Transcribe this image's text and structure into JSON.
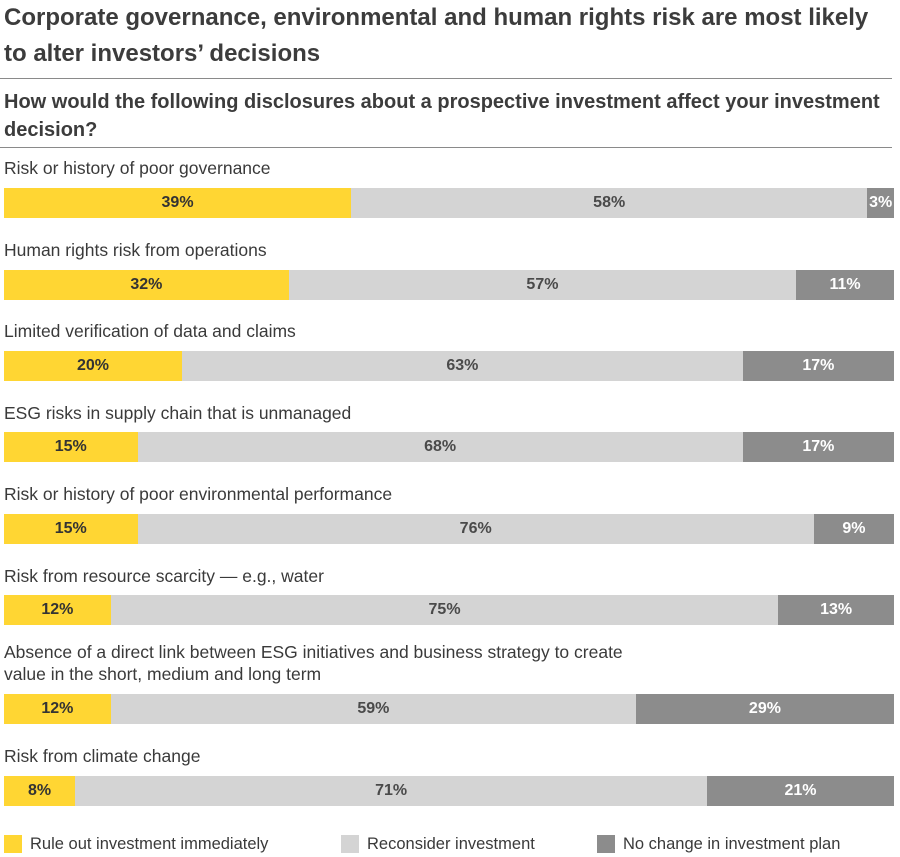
{
  "chart_data": {
    "type": "bar",
    "orientation": "horizontal",
    "stacked": true,
    "title": "Corporate governance, environmental and human rights risk are most likely to alter investors’ decisions",
    "subtitle": "How would the following disclosures about a prospective investment affect your investment decision?",
    "categories": [
      "Risk or history of poor governance",
      "Human rights risk from operations",
      "Limited verification of data and claims",
      "ESG risks in supply chain that is unmanaged",
      "Risk or history of poor environmental performance",
      "Risk from resource scarcity — e.g., water",
      "Absence of a direct link between ESG initiatives and business strategy to create value in the short, medium and long term",
      "Risk from climate change"
    ],
    "category_lines": [
      [
        "Risk or history of poor governance"
      ],
      [
        "Human rights risk from operations"
      ],
      [
        "Limited verification of data and claims"
      ],
      [
        "ESG risks in supply chain that is unmanaged"
      ],
      [
        "Risk or history of poor environmental performance"
      ],
      [
        "Risk from resource scarcity — e.g., water"
      ],
      [
        "Absence of a direct link between ESG initiatives and business strategy to create",
        "value in the short, medium and long term"
      ],
      [
        "Risk from climate change"
      ]
    ],
    "series": [
      {
        "name": "Rule out investment immediately",
        "color": "#ffd633",
        "values": [
          39,
          32,
          20,
          15,
          15,
          12,
          12,
          8
        ]
      },
      {
        "name": "Reconsider investment",
        "color": "#d4d4d4",
        "values": [
          58,
          57,
          63,
          68,
          76,
          75,
          59,
          71
        ]
      },
      {
        "name": "No change in investment plan",
        "color": "#8c8c8c",
        "values": [
          3,
          11,
          17,
          17,
          9,
          13,
          29,
          21
        ]
      }
    ],
    "value_suffix": "%",
    "xlim": [
      0,
      100
    ],
    "legend_position": "bottom",
    "grid": false
  }
}
